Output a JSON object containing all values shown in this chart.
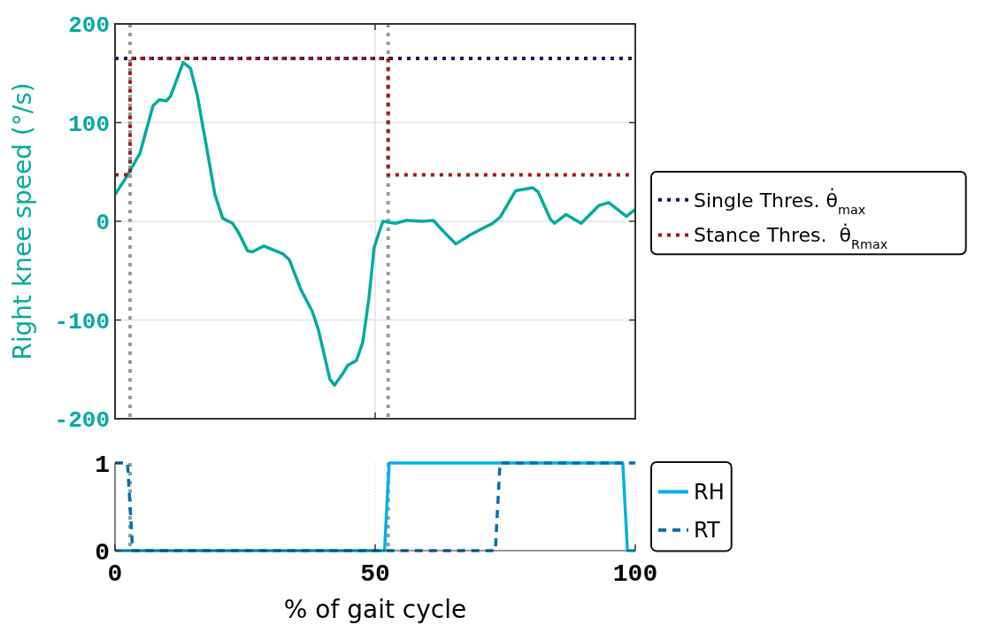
{
  "chart_data": [
    {
      "type": "line",
      "ylabel": "Right knee speed (°/s)",
      "xlim": [
        0,
        100
      ],
      "xticks": [
        0,
        50,
        100
      ],
      "ylim": [
        -200,
        200
      ],
      "yticks": [
        -200,
        -100,
        0,
        100,
        200
      ],
      "grid": true,
      "legend": "right",
      "tick_labels": "y",
      "ref_lines": [
        {
          "axis": "x",
          "value": 2.9,
          "color": "#999999",
          "line_style": "dotted"
        },
        {
          "axis": "x",
          "value": 52.5,
          "color": "#999999",
          "line_style": "dotted"
        }
      ],
      "series": [
        {
          "color": "#00aba0",
          "line_style": "solid",
          "x": [
            0,
            2.2,
            4.8,
            7.3,
            8.5,
            9.9,
            10.7,
            13.1,
            14.5,
            15.8,
            17.5,
            19.2,
            20.7,
            22.6,
            23.8,
            25.5,
            26.4,
            28.6,
            32.3,
            33.5,
            35.7,
            37.9,
            39.1,
            41.3,
            42.2,
            43.7,
            44.7,
            46.4,
            47.6,
            48.8,
            49.8,
            50.5,
            51.5,
            53.9,
            56.1,
            59,
            61.2,
            62.9,
            65.5,
            68.5,
            72.6,
            74,
            77,
            80.3,
            81.3,
            83.7,
            84.5,
            86.7,
            89.6,
            93,
            94.9,
            96.6,
            98.3,
            100
          ],
          "values": [
            27,
            45,
            69,
            117,
            123,
            122,
            127,
            161,
            155,
            128,
            78,
            27,
            3,
            -2,
            -12,
            -30,
            -31,
            -25,
            -33,
            -39,
            -69,
            -91,
            -110,
            -160,
            -166,
            -155,
            -146,
            -141,
            -123,
            -78,
            -27,
            -15,
            0,
            -2,
            1,
            0,
            1,
            -9,
            -23,
            -13,
            -2,
            4,
            31,
            34,
            30,
            2,
            -2,
            7,
            -2,
            16,
            19,
            12,
            5,
            12
          ]
        },
        {
          "name": "Single Thres. θ̇$_{max}$",
          "color": "#2e0a5e",
          "line_style": "dotted",
          "x": [
            0,
            100
          ],
          "values": [
            165,
            165
          ]
        },
        {
          "name": "Stance Thres.  θ̇$_{Rmax}$",
          "color": "#9b1b1b",
          "line_style": "dotted",
          "x": [
            0,
            2.9,
            2.9,
            52.5,
            52.5,
            100
          ],
          "values": [
            47,
            47,
            165,
            165,
            47,
            47
          ]
        }
      ]
    },
    {
      "type": "line",
      "xlabel": "% of gait cycle",
      "xlim": [
        0,
        100
      ],
      "xticks": [
        0,
        50,
        100
      ],
      "ylim": [
        0,
        1
      ],
      "yticks": [
        0,
        1
      ],
      "grid": "x",
      "legend": "right",
      "ref_lines": [
        {
          "axis": "x",
          "value": 2.9,
          "color": "#999999",
          "line_style": "dotted"
        },
        {
          "axis": "x",
          "value": 52.5,
          "color": "#999999",
          "line_style": "dotted"
        }
      ],
      "series": [
        {
          "name": "RH",
          "color": "#00b0e8",
          "line_style": "solid",
          "x": [
            0,
            51.8,
            52.7,
            97.6,
            98.5,
            100
          ],
          "values": [
            0,
            0,
            1,
            1,
            0,
            0
          ]
        },
        {
          "name": "RT",
          "color": "#0070b0",
          "line_style": "dashed",
          "x": [
            0,
            2.4,
            3.4,
            73.1,
            74,
            100
          ],
          "values": [
            1,
            1,
            0,
            0,
            1,
            1
          ]
        }
      ]
    }
  ]
}
